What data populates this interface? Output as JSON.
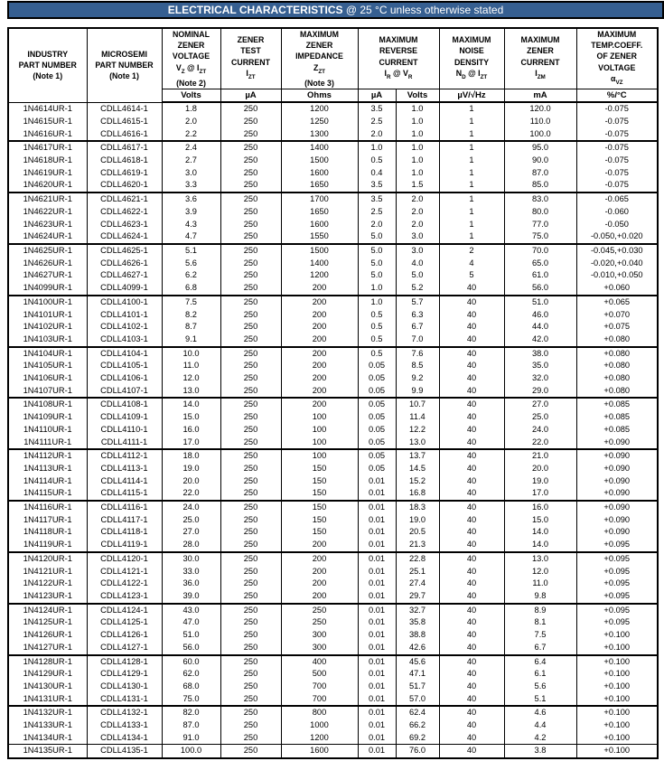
{
  "title": {
    "bold": "ELECTRICAL CHARACTERISTICS",
    "suffix": " @ 25 °C unless otherwise stated"
  },
  "colors": {
    "title_bar_bg": "#365F91",
    "title_text": "#FFFFFF",
    "table_border": "#000000"
  },
  "table": {
    "header": {
      "industry": {
        "l1": "INDUSTRY",
        "l2": "PART NUMBER",
        "l3": "(Note 1)"
      },
      "microsemi": {
        "l1": "MICROSEMI",
        "l2": "PART NUMBER",
        "l3": "(Note 1)"
      },
      "vz": {
        "l1": "NOMINAL",
        "l2": "ZENER",
        "l3": "VOLTAGE",
        "a": "V",
        "b": "Z",
        "c": " @ I",
        "d": "ZT",
        "note": "(Note 2)"
      },
      "izt": {
        "l1": "ZENER",
        "l2": "TEST",
        "l3": "CURRENT",
        "a": "I",
        "b": "ZT"
      },
      "zzt": {
        "l1": "MAXIMUM",
        "l2": "ZENER",
        "l3": "IMPEDANCE",
        "a": "Z",
        "b": "ZT",
        "note": "(Note 3)"
      },
      "ir": {
        "l1": "MAXIMUM",
        "l2": "REVERSE",
        "l3": "CURRENT",
        "a": "I",
        "b": "R",
        "c": " @ V",
        "d": "R"
      },
      "nd": {
        "l1": "MAXIMUM",
        "l2": "NOISE",
        "l3": "DENSITY",
        "a": "N",
        "b": "D",
        "c": " @ I",
        "d": "ZT"
      },
      "izm": {
        "l1": "MAXIMUM",
        "l2": "ZENER",
        "l3": "CURRENT",
        "a": "I",
        "b": "ZM"
      },
      "tc": {
        "l1": "MAXIMUM",
        "l2": "TEMP.COEFF.",
        "l3": "OF ZENER",
        "l4": "VOLTAGE",
        "a": "α",
        "b": "VZ"
      }
    },
    "units": {
      "vz": "Volts",
      "izt": "µA",
      "zzt": "Ohms",
      "ir_ua": "µA",
      "ir_v": "Volts",
      "nd": "µV/√Hz",
      "izm": "mA",
      "tc": "%/°C"
    },
    "col_ids": [
      "industry-part-number",
      "microsemi-part-number",
      "nominal-zener-voltage",
      "zener-test-current",
      "max-zener-impedance",
      "max-reverse-current-ua",
      "max-reverse-current-volts",
      "max-noise-density",
      "max-zener-current",
      "max-temp-coeff"
    ],
    "group_starts": [
      3,
      7,
      11,
      15,
      19,
      23,
      27,
      31,
      35,
      39,
      43,
      47
    ],
    "thin_starts": [
      50
    ],
    "rows": [
      [
        "1N4614UR-1",
        "CDLL4614-1",
        "1.8",
        "250",
        "1200",
        "3.5",
        "1.0",
        "1",
        "120.0",
        "-0.075"
      ],
      [
        "1N4615UR-1",
        "CDLL4615-1",
        "2.0",
        "250",
        "1250",
        "2.5",
        "1.0",
        "1",
        "110.0",
        "-0.075"
      ],
      [
        "1N4616UR-1",
        "CDLL4616-1",
        "2.2",
        "250",
        "1300",
        "2.0",
        "1.0",
        "1",
        "100.0",
        "-0.075"
      ],
      [
        "1N4617UR-1",
        "CDLL4617-1",
        "2.4",
        "250",
        "1400",
        "1.0",
        "1.0",
        "1",
        "95.0",
        "-0.075"
      ],
      [
        "1N4618UR-1",
        "CDLL4618-1",
        "2.7",
        "250",
        "1500",
        "0.5",
        "1.0",
        "1",
        "90.0",
        "-0.075"
      ],
      [
        "1N4619UR-1",
        "CDLL4619-1",
        "3.0",
        "250",
        "1600",
        "0.4",
        "1.0",
        "1",
        "87.0",
        "-0.075"
      ],
      [
        "1N4620UR-1",
        "CDLL4620-1",
        "3.3",
        "250",
        "1650",
        "3.5",
        "1.5",
        "1",
        "85.0",
        "-0.075"
      ],
      [
        "1N4621UR-1",
        "CDLL4621-1",
        "3.6",
        "250",
        "1700",
        "3.5",
        "2.0",
        "1",
        "83.0",
        "-0.065"
      ],
      [
        "1N4622UR-1",
        "CDLL4622-1",
        "3.9",
        "250",
        "1650",
        "2.5",
        "2.0",
        "1",
        "80.0",
        "-0.060"
      ],
      [
        "1N4623UR-1",
        "CDLL4623-1",
        "4.3",
        "250",
        "1600",
        "2.0",
        "2.0",
        "1",
        "77.0",
        "-0.050"
      ],
      [
        "1N4624UR-1",
        "CDLL4624-1",
        "4.7",
        "250",
        "1550",
        "5.0",
        "3.0",
        "1",
        "75.0",
        "-0.050,+0.020"
      ],
      [
        "1N4625UR-1",
        "CDLL4625-1",
        "5.1",
        "250",
        "1500",
        "5.0",
        "3.0",
        "2",
        "70.0",
        "-0.045,+0.030"
      ],
      [
        "1N4626UR-1",
        "CDLL4626-1",
        "5.6",
        "250",
        "1400",
        "5.0",
        "4.0",
        "4",
        "65.0",
        "-0.020,+0.040"
      ],
      [
        "1N4627UR-1",
        "CDLL4627-1",
        "6.2",
        "250",
        "1200",
        "5.0",
        "5.0",
        "5",
        "61.0",
        "-0.010,+0.050"
      ],
      [
        "1N4099UR-1",
        "CDLL4099-1",
        "6.8",
        "250",
        "200",
        "1.0",
        "5.2",
        "40",
        "56.0",
        "+0.060"
      ],
      [
        "1N4100UR-1",
        "CDLL4100-1",
        "7.5",
        "250",
        "200",
        "1.0",
        "5.7",
        "40",
        "51.0",
        "+0.065"
      ],
      [
        "1N4101UR-1",
        "CDLL4101-1",
        "8.2",
        "250",
        "200",
        "0.5",
        "6.3",
        "40",
        "46.0",
        "+0.070"
      ],
      [
        "1N4102UR-1",
        "CDLL4102-1",
        "8.7",
        "250",
        "200",
        "0.5",
        "6.7",
        "40",
        "44.0",
        "+0.075"
      ],
      [
        "1N4103UR-1",
        "CDLL4103-1",
        "9.1",
        "250",
        "200",
        "0.5",
        "7.0",
        "40",
        "42.0",
        "+0.080"
      ],
      [
        "1N4104UR-1",
        "CDLL4104-1",
        "10.0",
        "250",
        "200",
        "0.5",
        "7.6",
        "40",
        "38.0",
        "+0.080"
      ],
      [
        "1N4105UR-1",
        "CDLL4105-1",
        "11.0",
        "250",
        "200",
        "0.05",
        "8.5",
        "40",
        "35.0",
        "+0.080"
      ],
      [
        "1N4106UR-1",
        "CDLL4106-1",
        "12.0",
        "250",
        "200",
        "0.05",
        "9.2",
        "40",
        "32.0",
        "+0.080"
      ],
      [
        "1N4107UR-1",
        "CDLL4107-1",
        "13.0",
        "250",
        "200",
        "0.05",
        "9.9",
        "40",
        "29.0",
        "+0.080"
      ],
      [
        "1N4108UR-1",
        "CDLL4108-1",
        "14.0",
        "250",
        "200",
        "0.05",
        "10.7",
        "40",
        "27.0",
        "+0.085"
      ],
      [
        "1N4109UR-1",
        "CDLL4109-1",
        "15.0",
        "250",
        "100",
        "0.05",
        "11.4",
        "40",
        "25.0",
        "+0.085"
      ],
      [
        "1N4110UR-1",
        "CDLL4110-1",
        "16.0",
        "250",
        "100",
        "0.05",
        "12.2",
        "40",
        "24.0",
        "+0.085"
      ],
      [
        "1N4111UR-1",
        "CDLL4111-1",
        "17.0",
        "250",
        "100",
        "0.05",
        "13.0",
        "40",
        "22.0",
        "+0.090"
      ],
      [
        "1N4112UR-1",
        "CDLL4112-1",
        "18.0",
        "250",
        "100",
        "0.05",
        "13.7",
        "40",
        "21.0",
        "+0.090"
      ],
      [
        "1N4113UR-1",
        "CDLL4113-1",
        "19.0",
        "250",
        "150",
        "0.05",
        "14.5",
        "40",
        "20.0",
        "+0.090"
      ],
      [
        "1N4114UR-1",
        "CDLL4114-1",
        "20.0",
        "250",
        "150",
        "0.01",
        "15.2",
        "40",
        "19.0",
        "+0.090"
      ],
      [
        "1N4115UR-1",
        "CDLL4115-1",
        "22.0",
        "250",
        "150",
        "0.01",
        "16.8",
        "40",
        "17.0",
        "+0.090"
      ],
      [
        "1N4116UR-1",
        "CDLL4116-1",
        "24.0",
        "250",
        "150",
        "0.01",
        "18.3",
        "40",
        "16.0",
        "+0.090"
      ],
      [
        "1N4117UR-1",
        "CDLL4117-1",
        "25.0",
        "250",
        "150",
        "0.01",
        "19.0",
        "40",
        "15.0",
        "+0.090"
      ],
      [
        "1N4118UR-1",
        "CDLL4118-1",
        "27.0",
        "250",
        "150",
        "0.01",
        "20.5",
        "40",
        "14.0",
        "+0.090"
      ],
      [
        "1N4119UR-1",
        "CDLL4119-1",
        "28.0",
        "250",
        "200",
        "0.01",
        "21.3",
        "40",
        "14.0",
        "+0.095"
      ],
      [
        "1N4120UR-1",
        "CDLL4120-1",
        "30.0",
        "250",
        "200",
        "0.01",
        "22.8",
        "40",
        "13.0",
        "+0.095"
      ],
      [
        "1N4121UR-1",
        "CDLL4121-1",
        "33.0",
        "250",
        "200",
        "0.01",
        "25.1",
        "40",
        "12.0",
        "+0.095"
      ],
      [
        "1N4122UR-1",
        "CDLL4122-1",
        "36.0",
        "250",
        "200",
        "0.01",
        "27.4",
        "40",
        "11.0",
        "+0.095"
      ],
      [
        "1N4123UR-1",
        "CDLL4123-1",
        "39.0",
        "250",
        "200",
        "0.01",
        "29.7",
        "40",
        "9.8",
        "+0.095"
      ],
      [
        "1N4124UR-1",
        "CDLL4124-1",
        "43.0",
        "250",
        "250",
        "0.01",
        "32.7",
        "40",
        "8.9",
        "+0.095"
      ],
      [
        "1N4125UR-1",
        "CDLL4125-1",
        "47.0",
        "250",
        "250",
        "0.01",
        "35.8",
        "40",
        "8.1",
        "+0.095"
      ],
      [
        "1N4126UR-1",
        "CDLL4126-1",
        "51.0",
        "250",
        "300",
        "0.01",
        "38.8",
        "40",
        "7.5",
        "+0.100"
      ],
      [
        "1N4127UR-1",
        "CDLL4127-1",
        "56.0",
        "250",
        "300",
        "0.01",
        "42.6",
        "40",
        "6.7",
        "+0.100"
      ],
      [
        "1N4128UR-1",
        "CDLL4128-1",
        "60.0",
        "250",
        "400",
        "0.01",
        "45.6",
        "40",
        "6.4",
        "+0.100"
      ],
      [
        "1N4129UR-1",
        "CDLL4129-1",
        "62.0",
        "250",
        "500",
        "0.01",
        "47.1",
        "40",
        "6.1",
        "+0.100"
      ],
      [
        "1N4130UR-1",
        "CDLL4130-1",
        "68.0",
        "250",
        "700",
        "0.01",
        "51.7",
        "40",
        "5.6",
        "+0.100"
      ],
      [
        "1N4131UR-1",
        "CDLL4131-1",
        "75.0",
        "250",
        "700",
        "0.01",
        "57.0",
        "40",
        "5.1",
        "+0.100"
      ],
      [
        "1N4132UR-1",
        "CDLL4132-1",
        "82.0",
        "250",
        "800",
        "0.01",
        "62.4",
        "40",
        "4.6",
        "+0.100"
      ],
      [
        "1N4133UR-1",
        "CDLL4133-1",
        "87.0",
        "250",
        "1000",
        "0.01",
        "66.2",
        "40",
        "4.4",
        "+0.100"
      ],
      [
        "1N4134UR-1",
        "CDLL4134-1",
        "91.0",
        "250",
        "1200",
        "0.01",
        "69.2",
        "40",
        "4.2",
        "+0.100"
      ],
      [
        "1N4135UR-1",
        "CDLL4135-1",
        "100.0",
        "250",
        "1600",
        "0.01",
        "76.0",
        "40",
        "3.8",
        "+0.100"
      ]
    ]
  }
}
